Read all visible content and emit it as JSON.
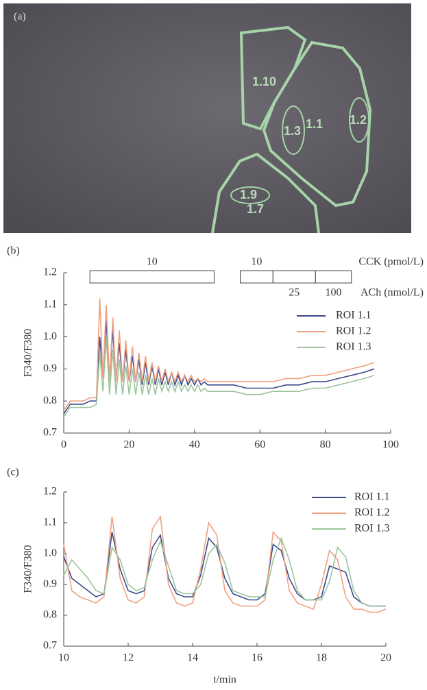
{
  "figure": {
    "panel_a": {
      "label": "(a)",
      "roi_labels": [
        "1.10",
        "1.1",
        "1.3",
        "1.2",
        "1.9",
        "1.7"
      ]
    }
  },
  "chart_data": [
    {
      "type": "line",
      "panel_label": "(b)",
      "ylabel": "F340/F380",
      "x": [
        0,
        2,
        4,
        6,
        8,
        10,
        11,
        12,
        13,
        14,
        15,
        16,
        17,
        18,
        19,
        20,
        21,
        22,
        23,
        24,
        25,
        26,
        27,
        28,
        29,
        30,
        31,
        32,
        33,
        34,
        35,
        36,
        37,
        38,
        39,
        40,
        41,
        42,
        43,
        44,
        48,
        52,
        56,
        60,
        64,
        68,
        72,
        76,
        80,
        84,
        88,
        92,
        95
      ],
      "series": [
        {
          "name": "ROI 1.1",
          "color": "#3a4a8a",
          "values": [
            0.76,
            0.79,
            0.79,
            0.79,
            0.8,
            0.8,
            1.0,
            0.88,
            1.05,
            0.87,
            1.02,
            0.87,
            0.98,
            0.86,
            0.96,
            0.86,
            0.94,
            0.86,
            0.93,
            0.85,
            0.92,
            0.85,
            0.91,
            0.85,
            0.9,
            0.85,
            0.89,
            0.85,
            0.89,
            0.85,
            0.88,
            0.85,
            0.88,
            0.85,
            0.87,
            0.85,
            0.87,
            0.85,
            0.86,
            0.85,
            0.85,
            0.85,
            0.84,
            0.84,
            0.84,
            0.85,
            0.85,
            0.86,
            0.86,
            0.87,
            0.88,
            0.89,
            0.9
          ]
        },
        {
          "name": "ROI 1.2",
          "color": "#f0a080",
          "values": [
            0.77,
            0.8,
            0.8,
            0.8,
            0.81,
            0.81,
            1.12,
            0.87,
            1.1,
            0.86,
            1.06,
            0.86,
            1.02,
            0.86,
            0.99,
            0.86,
            0.97,
            0.86,
            0.95,
            0.86,
            0.94,
            0.86,
            0.92,
            0.86,
            0.91,
            0.86,
            0.9,
            0.86,
            0.89,
            0.86,
            0.89,
            0.86,
            0.88,
            0.86,
            0.88,
            0.86,
            0.87,
            0.86,
            0.87,
            0.86,
            0.86,
            0.86,
            0.86,
            0.86,
            0.86,
            0.87,
            0.87,
            0.88,
            0.88,
            0.89,
            0.9,
            0.91,
            0.92
          ]
        },
        {
          "name": "ROI 1.3",
          "color": "#9cc49c",
          "values": [
            0.75,
            0.78,
            0.78,
            0.78,
            0.78,
            0.79,
            0.95,
            0.83,
            1.0,
            0.82,
            0.96,
            0.82,
            0.93,
            0.82,
            0.91,
            0.82,
            0.9,
            0.82,
            0.89,
            0.82,
            0.88,
            0.82,
            0.87,
            0.82,
            0.87,
            0.83,
            0.86,
            0.83,
            0.86,
            0.83,
            0.86,
            0.83,
            0.85,
            0.83,
            0.85,
            0.83,
            0.85,
            0.83,
            0.84,
            0.83,
            0.83,
            0.83,
            0.82,
            0.82,
            0.83,
            0.83,
            0.83,
            0.84,
            0.84,
            0.85,
            0.86,
            0.87,
            0.88
          ]
        }
      ],
      "xlim": [
        0,
        100
      ],
      "xticks": [
        0,
        20,
        40,
        60,
        80,
        100
      ],
      "ylim": [
        0.7,
        1.2
      ],
      "yticks": [
        0.7,
        0.8,
        0.9,
        {
          "value": 1,
          "label": "1.0"
        },
        1.1,
        1.2
      ],
      "stimuli": [
        {
          "label": "10",
          "start": 8,
          "end": 46
        },
        {
          "label": "10",
          "start": 54,
          "end": 64
        },
        {
          "label": "25",
          "start": 64,
          "end": 77
        },
        {
          "label": "100",
          "start": 77,
          "end": 88
        }
      ],
      "stimulus_names": [
        "CCK (pmol/L)",
        "ACh (nmol/L)"
      ]
    },
    {
      "type": "line",
      "panel_label": "(c)",
      "ylabel": "F340/F380",
      "xlabel": "t/min",
      "x": [
        10,
        10.25,
        10.5,
        10.75,
        11,
        11.25,
        11.5,
        11.75,
        12,
        12.25,
        12.5,
        12.75,
        13,
        13.25,
        13.5,
        13.75,
        14,
        14.25,
        14.5,
        14.75,
        15,
        15.25,
        15.5,
        15.75,
        16,
        16.25,
        16.5,
        16.75,
        17,
        17.25,
        17.5,
        17.75,
        18,
        18.25,
        18.5,
        18.75,
        19,
        19.25,
        19.5,
        19.75,
        20
      ],
      "series": [
        {
          "name": "ROI 1.1",
          "color": "#3a4a8a",
          "values": [
            0.99,
            0.92,
            0.9,
            0.88,
            0.86,
            0.87,
            1.07,
            0.95,
            0.88,
            0.87,
            0.88,
            1.02,
            1.06,
            0.92,
            0.87,
            0.86,
            0.86,
            0.93,
            1.05,
            1.02,
            0.92,
            0.87,
            0.86,
            0.85,
            0.85,
            0.87,
            1.03,
            1.01,
            0.92,
            0.87,
            0.85,
            0.85,
            0.86,
            0.96,
            0.95,
            0.94,
            0.86,
            0.84,
            0.83,
            0.83,
            0.83
          ]
        },
        {
          "name": "ROI 1.2",
          "color": "#f0a080",
          "values": [
            1.03,
            0.88,
            0.86,
            0.85,
            0.84,
            0.86,
            1.12,
            0.92,
            0.85,
            0.84,
            0.86,
            1.08,
            1.12,
            0.9,
            0.84,
            0.83,
            0.84,
            0.95,
            1.1,
            1.06,
            0.88,
            0.84,
            0.83,
            0.83,
            0.83,
            0.85,
            1.07,
            1.04,
            0.88,
            0.84,
            0.83,
            0.82,
            0.9,
            1.01,
            0.98,
            0.86,
            0.82,
            0.82,
            0.81,
            0.81,
            0.82
          ]
        },
        {
          "name": "ROI 1.3",
          "color": "#9cc49c",
          "values": [
            0.93,
            0.98,
            0.95,
            0.92,
            0.88,
            0.87,
            1.02,
            0.98,
            0.9,
            0.88,
            0.89,
            0.98,
            1.04,
            0.96,
            0.88,
            0.87,
            0.87,
            0.9,
            1.0,
            1.03,
            0.97,
            0.88,
            0.87,
            0.86,
            0.86,
            0.86,
            0.98,
            1.05,
            0.98,
            0.88,
            0.85,
            0.85,
            0.85,
            0.91,
            1.02,
            0.99,
            0.88,
            0.84,
            0.83,
            0.83,
            0.83
          ]
        }
      ],
      "xlim": [
        10,
        20
      ],
      "xticks": [
        10,
        12,
        14,
        16,
        18,
        20
      ],
      "ylim": [
        0.7,
        1.2
      ],
      "yticks": [
        0.7,
        0.8,
        0.9,
        {
          "value": 1,
          "label": "1.0"
        },
        1.1,
        1.2
      ]
    }
  ]
}
